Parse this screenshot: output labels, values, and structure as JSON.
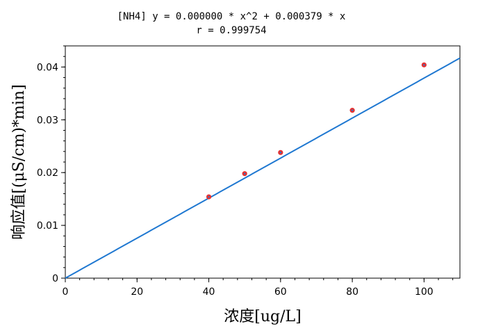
{
  "chart_data": {
    "type": "scatter",
    "title": "[NH4] y = 0.000000 * x^2 + 0.000379 * x",
    "subtitle": "r = 0.999754",
    "xlabel": "浓度[ug/L]",
    "ylabel": "响应值[(μS/cm)*min]",
    "xlim": [
      0,
      110
    ],
    "ylim": [
      0,
      0.044
    ],
    "xticks": [
      0,
      20,
      40,
      60,
      80,
      100
    ],
    "xtick_labels": [
      "0",
      "20",
      "40",
      "60",
      "80",
      "100"
    ],
    "yticks": [
      0,
      0.01,
      0.02,
      0.03,
      0.04
    ],
    "ytick_labels": [
      "0",
      "0.01",
      "0.02",
      "0.03",
      "0.04"
    ],
    "grid": false,
    "fit": {
      "a": 0.0,
      "b": 0.000379,
      "x_range": [
        0,
        110
      ]
    },
    "points": [
      {
        "x": 40,
        "y": 0.0154
      },
      {
        "x": 50,
        "y": 0.0198
      },
      {
        "x": 60,
        "y": 0.0238
      },
      {
        "x": 80,
        "y": 0.0318
      },
      {
        "x": 100,
        "y": 0.0404
      }
    ],
    "colors": {
      "fit_line": "#1f78d1",
      "point_fill": "#e63232",
      "point_center": "#1f78d1"
    }
  }
}
